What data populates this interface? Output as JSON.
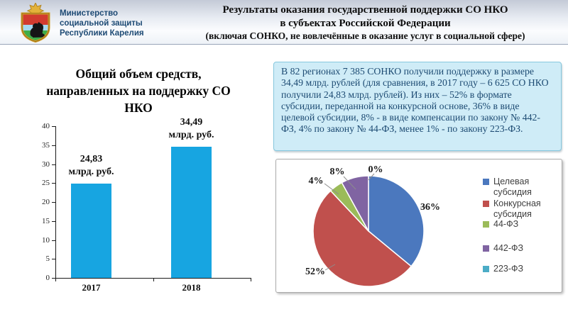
{
  "header": {
    "ministry": {
      "line1": "Министерство",
      "line2": "социальной защиты",
      "line3": "Республики Карелия"
    },
    "title_line1": "Результаты оказания государственной поддержки СО НКО",
    "title_line2": "в субъектах Российской Федерации",
    "title_line3": "(включая СОНКО, не вовлечённые в оказание услуг в социальной сфере)"
  },
  "info_box": {
    "text": "В 82 регионах 7 385 СОНКО получили поддержку в размере 34,49 млрд. рублей (для сравнения, в 2017 году – 6 625 СО НКО получили 24,83 млрд. рублей). Из них – 52% в формате субсидии, переданной на конкурсной основе, 36% в виде целевой субсидии, 8% - в виде компенсации по закону № 442-ФЗ, 4% по закону № 44-ФЗ, менее 1% - по закону 223-ФЗ."
  },
  "chart_data": [
    {
      "type": "bar",
      "title_lines": [
        "Общий объем средств,",
        "направленных на поддержку СО",
        "НКО"
      ],
      "categories": [
        "2017",
        "2018"
      ],
      "values": [
        24.83,
        34.49
      ],
      "bar_labels": [
        [
          "24,83",
          "млрд. руб."
        ],
        [
          "34,49",
          "млрд. руб."
        ]
      ],
      "ylim": [
        0,
        40
      ],
      "yticks": [
        0,
        5,
        10,
        15,
        20,
        25,
        30,
        35,
        40
      ],
      "bar_color": "#17a5e1",
      "grid": false,
      "legend_position": "none"
    },
    {
      "type": "pie",
      "start_angle_deg": 0,
      "direction": "clockwise",
      "legend_position": "right",
      "series": [
        {
          "name": "Целевая субсидия",
          "value": 36,
          "label": "36%",
          "color": "#4b78be"
        },
        {
          "name": "Конкурсная субсидия",
          "value": 52,
          "label": "52%",
          "color": "#c0504d"
        },
        {
          "name": "44-ФЗ",
          "value": 4,
          "label": "4%",
          "color": "#9bbb59"
        },
        {
          "name": "442-ФЗ",
          "value": 8,
          "label": "8%",
          "color": "#8064a2"
        },
        {
          "name": "223-ФЗ",
          "value": 0,
          "label": "0%",
          "color": "#4bacc6"
        }
      ]
    }
  ]
}
